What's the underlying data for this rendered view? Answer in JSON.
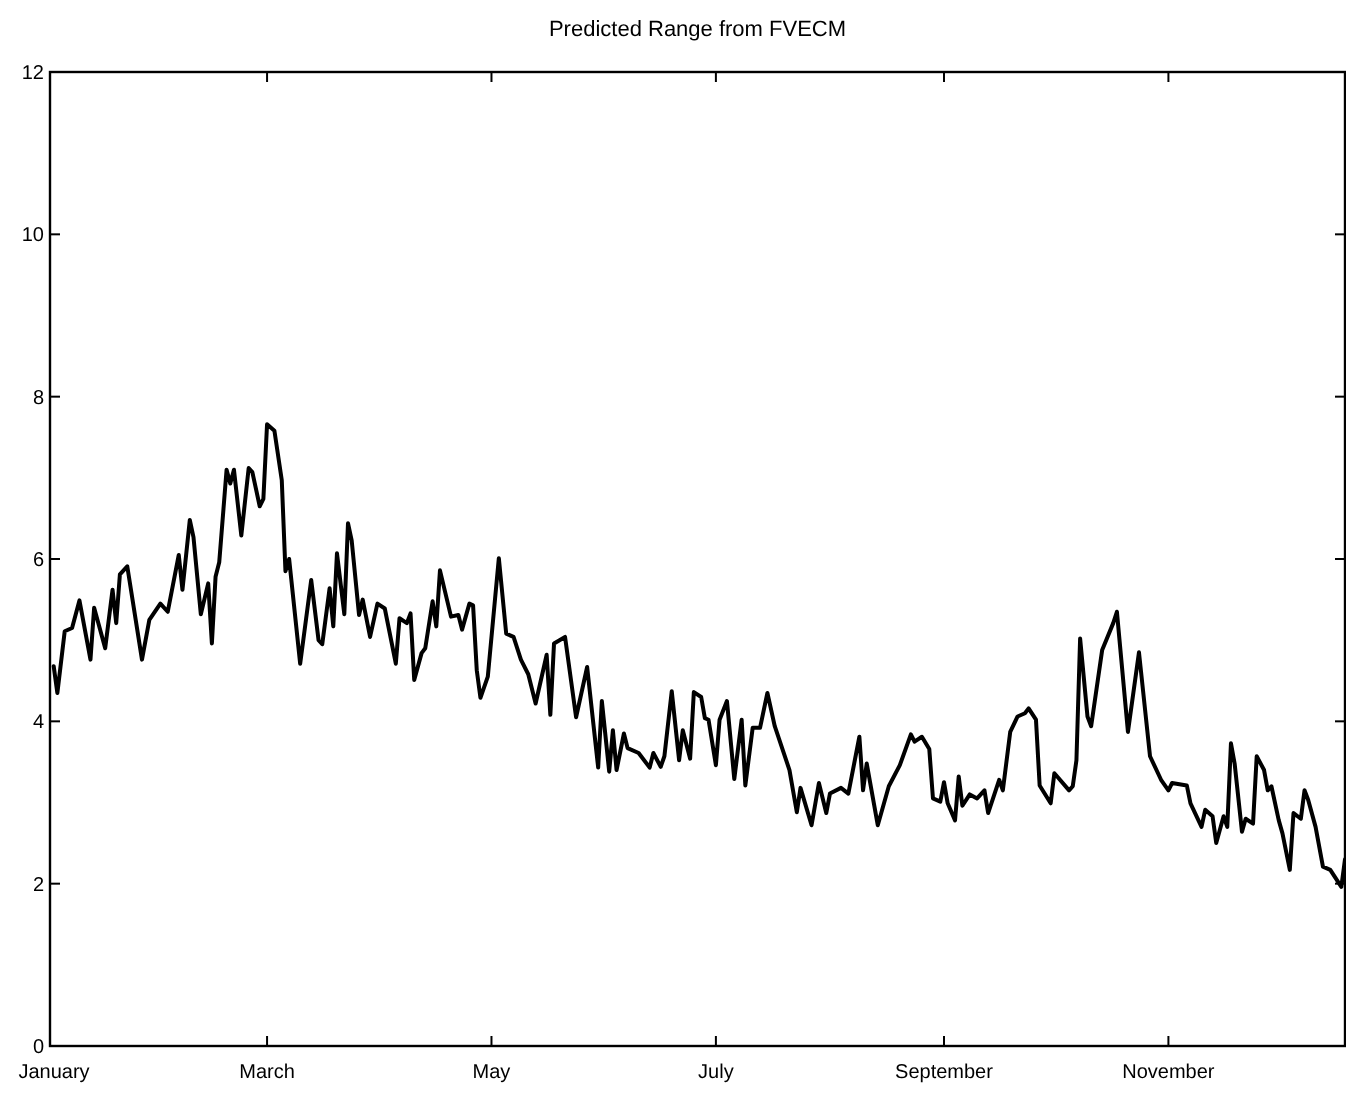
{
  "chart_data": {
    "type": "line",
    "title": "Predicted Range from FVECM",
    "x": [
      "--01-02",
      "--01-03",
      "--01-05",
      "--01-07",
      "--01-09",
      "--01-12",
      "--01-13",
      "--01-16",
      "--01-18",
      "--01-19",
      "--01-20",
      "--01-22",
      "--01-26",
      "--01-28",
      "--01-31",
      "--02-02",
      "--02-05",
      "--02-06",
      "--02-08",
      "--02-09",
      "--02-11",
      "--02-13",
      "--02-14",
      "--02-15",
      "--02-16",
      "--02-18",
      "--02-19",
      "--02-20",
      "--02-22",
      "--02-24",
      "--02-25",
      "--02-27",
      "--02-28",
      "--03-01",
      "--03-03",
      "--03-05",
      "--03-06",
      "--03-07",
      "--03-10",
      "--03-13",
      "--03-15",
      "--03-16",
      "--03-18",
      "--03-19",
      "--03-20",
      "--03-22",
      "--03-23",
      "--03-24",
      "--03-26",
      "--03-27",
      "--03-29",
      "--03-31",
      "--04-02",
      "--04-05",
      "--04-06",
      "--04-08",
      "--04-09",
      "--04-10",
      "--04-12",
      "--04-13",
      "--04-15",
      "--04-16",
      "--04-17",
      "--04-20",
      "--04-22",
      "--04-23",
      "--04-25",
      "--04-26",
      "--04-27",
      "--04-28",
      "--04-30",
      "--05-03",
      "--05-05",
      "--05-07",
      "--05-09",
      "--05-11",
      "--05-13",
      "--05-16",
      "--05-17",
      "--05-18",
      "--05-21",
      "--05-24",
      "--05-27",
      "--05-30",
      "--05-31",
      "--06-02",
      "--06-03",
      "--06-04",
      "--06-06",
      "--06-07",
      "--06-10",
      "--06-13",
      "--06-14",
      "--06-16",
      "--06-17",
      "--06-19",
      "--06-21",
      "--06-22",
      "--06-24",
      "--06-25",
      "--06-27",
      "--06-28",
      "--06-29",
      "--07-01",
      "--07-02",
      "--07-04",
      "--07-06",
      "--07-08",
      "--07-09",
      "--07-11",
      "--07-13",
      "--07-15",
      "--07-17",
      "--07-21",
      "--07-23",
      "--07-24",
      "--07-27",
      "--07-29",
      "--07-31",
      "--08-01",
      "--08-04",
      "--08-06",
      "--08-09",
      "--08-10",
      "--08-11",
      "--08-14",
      "--08-17",
      "--08-20",
      "--08-23",
      "--08-24",
      "--08-26",
      "--08-28",
      "--08-29",
      "--08-31",
      "--09-01",
      "--09-02",
      "--09-04",
      "--09-05",
      "--09-06",
      "--09-08",
      "--09-10",
      "--09-12",
      "--09-13",
      "--09-16",
      "--09-17",
      "--09-19",
      "--09-21",
      "--09-23",
      "--09-24",
      "--09-26",
      "--09-27",
      "--09-30",
      "--10-01",
      "--10-05",
      "--10-06",
      "--10-07",
      "--10-08",
      "--10-10",
      "--10-11",
      "--10-14",
      "--10-17",
      "--10-18",
      "--10-21",
      "--10-24",
      "--10-27",
      "--10-30",
      "--11-01",
      "--11-02",
      "--11-06",
      "--11-07",
      "--11-10",
      "--11-11",
      "--11-13",
      "--11-14",
      "--11-16",
      "--11-17",
      "--11-18",
      "--11-19",
      "--11-21",
      "--11-22",
      "--11-24",
      "--11-25",
      "--11-27",
      "--11-28",
      "--11-29",
      "--12-01",
      "--12-02",
      "--12-04",
      "--12-05",
      "--12-07",
      "--12-08",
      "--12-09",
      "--12-11",
      "--12-13",
      "--12-15",
      "--12-18",
      "--12-19"
    ],
    "series": [
      {
        "color": "#000000",
        "values": [
          4.68,
          4.35,
          5.11,
          5.15,
          5.49,
          4.76,
          5.4,
          4.9,
          5.62,
          5.21,
          5.81,
          5.91,
          4.76,
          5.25,
          5.45,
          5.35,
          6.05,
          5.62,
          6.48,
          6.27,
          5.32,
          5.7,
          4.96,
          5.78,
          5.96,
          7.1,
          6.93,
          7.1,
          6.29,
          7.12,
          7.07,
          6.65,
          6.74,
          7.66,
          7.58,
          6.97,
          5.85,
          6.0,
          4.71,
          5.74,
          5.0,
          4.95,
          5.64,
          5.17,
          6.07,
          5.32,
          6.44,
          6.23,
          5.31,
          5.5,
          5.04,
          5.45,
          5.39,
          4.71,
          5.27,
          5.21,
          5.33,
          4.51,
          4.84,
          4.9,
          5.48,
          5.17,
          5.86,
          5.29,
          5.31,
          5.13,
          5.45,
          5.43,
          4.63,
          4.29,
          4.55,
          6.01,
          5.08,
          5.04,
          4.76,
          4.58,
          4.22,
          4.82,
          4.08,
          4.96,
          5.04,
          4.05,
          4.67,
          3.43,
          4.25,
          3.38,
          3.89,
          3.4,
          3.85,
          3.67,
          3.61,
          3.43,
          3.61,
          3.44,
          3.57,
          4.37,
          3.52,
          3.89,
          3.54,
          4.36,
          4.3,
          4.04,
          4.02,
          3.46,
          4.02,
          4.25,
          3.29,
          4.02,
          3.21,
          3.92,
          3.92,
          4.35,
          3.94,
          3.4,
          2.88,
          3.18,
          2.72,
          3.24,
          2.87,
          3.11,
          3.18,
          3.11,
          3.81,
          3.15,
          3.48,
          2.72,
          3.2,
          3.46,
          3.84,
          3.75,
          3.81,
          3.66,
          3.05,
          3.01,
          3.25,
          2.99,
          2.78,
          3.32,
          2.96,
          3.1,
          3.05,
          3.15,
          2.87,
          3.28,
          3.15,
          3.87,
          4.06,
          4.1,
          4.16,
          4.02,
          3.21,
          2.99,
          3.36,
          3.15,
          3.2,
          3.52,
          5.02,
          4.06,
          3.94,
          4.88,
          5.21,
          5.35,
          3.87,
          4.85,
          3.57,
          3.28,
          3.15,
          3.24,
          3.21,
          2.99,
          2.7,
          2.91,
          2.83,
          2.5,
          2.83,
          2.7,
          3.73,
          3.48,
          2.64,
          2.8,
          2.74,
          3.57,
          3.4,
          3.15,
          3.2,
          2.78,
          2.62,
          2.17,
          2.87,
          2.8,
          3.15,
          3.03,
          2.7,
          2.21,
          2.17,
          1.96,
          2.3
        ]
      }
    ],
    "xlim": [
      "--01-01",
      "--12-19"
    ],
    "xticks": [
      {
        "value": "--01-01",
        "label": "January"
      },
      {
        "value": "--03-01",
        "label": "March"
      },
      {
        "value": "--05-01",
        "label": "May"
      },
      {
        "value": "--07-01",
        "label": "July"
      },
      {
        "value": "--09-01",
        "label": "September"
      },
      {
        "value": "--11-01",
        "label": "November"
      }
    ],
    "ylim": [
      0,
      12
    ],
    "yticks": [
      0,
      2,
      4,
      6,
      8,
      10,
      12
    ],
    "marker": "none",
    "line_style": "solid"
  }
}
